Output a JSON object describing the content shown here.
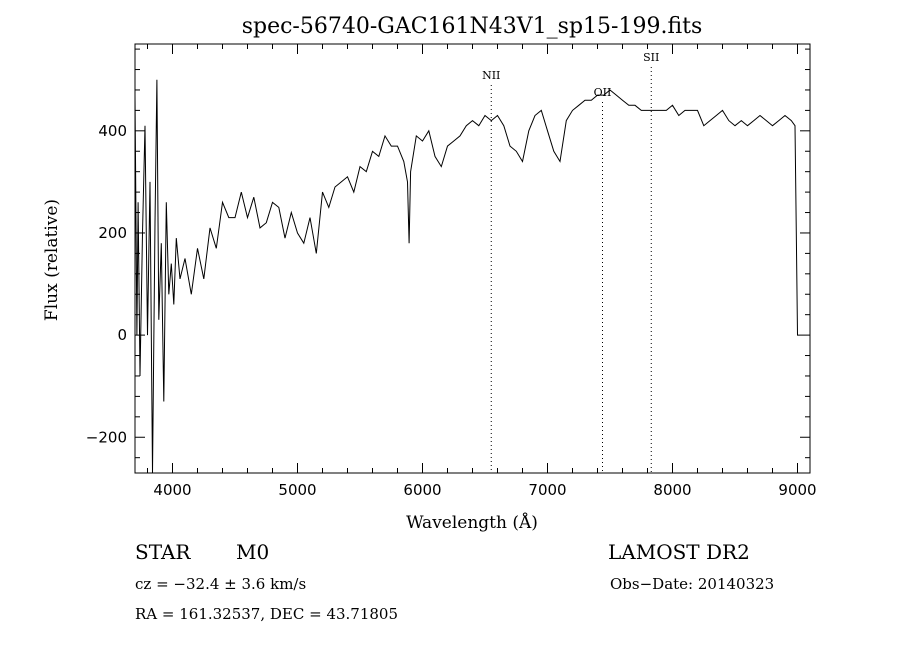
{
  "chart_data": {
    "type": "line",
    "title": "spec-56740-GAC161N43V1_sp15-199.fits",
    "xlabel": "Wavelength (Å)",
    "ylabel": "Flux (relative)",
    "xlim": [
      3700,
      9100
    ],
    "ylim": [
      -270,
      570
    ],
    "x_ticks": [
      4000,
      5000,
      6000,
      7000,
      8000,
      9000
    ],
    "y_ticks": [
      -200,
      0,
      200,
      400
    ],
    "grid": false,
    "series": [
      {
        "x": [
          3700,
          3715,
          3725,
          3740,
          3760,
          3780,
          3800,
          3820,
          3840,
          3860,
          3875,
          3890,
          3910,
          3930,
          3950,
          3970,
          3990,
          4010,
          4030,
          4060,
          4100,
          4150,
          4200,
          4250,
          4300,
          4350,
          4400,
          4450,
          4500,
          4550,
          4600,
          4650,
          4700,
          4750,
          4800,
          4850,
          4900,
          4950,
          5000,
          5050,
          5100,
          5150,
          5200,
          5250,
          5300,
          5350,
          5400,
          5450,
          5500,
          5550,
          5600,
          5650,
          5700,
          5750,
          5800,
          5850,
          5880,
          5893,
          5905,
          5950,
          6000,
          6050,
          6100,
          6150,
          6200,
          6250,
          6300,
          6350,
          6400,
          6450,
          6500,
          6550,
          6600,
          6650,
          6700,
          6750,
          6800,
          6850,
          6900,
          6950,
          7000,
          7050,
          7100,
          7150,
          7200,
          7250,
          7300,
          7350,
          7400,
          7450,
          7500,
          7550,
          7600,
          7650,
          7700,
          7750,
          7800,
          7850,
          7900,
          7950,
          8000,
          8050,
          8100,
          8150,
          8200,
          8250,
          8300,
          8350,
          8400,
          8450,
          8500,
          8550,
          8600,
          8650,
          8700,
          8750,
          8800,
          8850,
          8900,
          8950,
          8980,
          8990,
          9000,
          9020
        ],
        "y": [
          470,
          0,
          260,
          -80,
          200,
          410,
          0,
          300,
          -270,
          220,
          500,
          30,
          180,
          -130,
          260,
          80,
          140,
          60,
          190,
          110,
          150,
          80,
          170,
          110,
          210,
          170,
          260,
          230,
          230,
          280,
          230,
          270,
          210,
          220,
          260,
          250,
          190,
          240,
          200,
          180,
          230,
          160,
          280,
          250,
          290,
          300,
          310,
          280,
          330,
          320,
          360,
          350,
          390,
          370,
          370,
          340,
          300,
          180,
          320,
          390,
          380,
          400,
          350,
          330,
          370,
          380,
          390,
          410,
          420,
          410,
          430,
          420,
          430,
          410,
          370,
          360,
          340,
          400,
          430,
          440,
          400,
          360,
          340,
          420,
          440,
          450,
          460,
          460,
          470,
          470,
          480,
          470,
          460,
          450,
          450,
          440,
          440,
          440,
          440,
          440,
          450,
          430,
          440,
          440,
          440,
          410,
          420,
          430,
          440,
          420,
          410,
          420,
          410,
          420,
          430,
          420,
          410,
          420,
          430,
          420,
          410,
          200,
          0,
          0
        ]
      }
    ],
    "line_markers": [
      {
        "label": "NII",
        "x": 6550
      },
      {
        "label": "OII",
        "x": 7440
      },
      {
        "label": "SII",
        "x": 7830
      }
    ]
  },
  "info": {
    "object_class": "STAR",
    "subclass": "M0",
    "survey": "LAMOST DR2",
    "cz": "cz = −32.4 ± 3.6 km/s",
    "obs_date": "Obs−Date: 20140323",
    "coords": "RA = 161.32537, DEC =  43.71805"
  }
}
